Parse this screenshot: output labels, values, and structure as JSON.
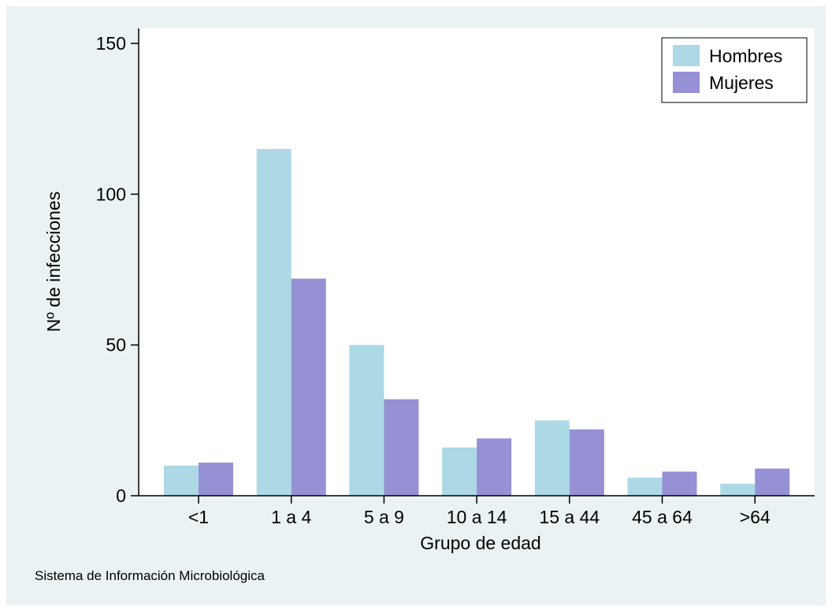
{
  "chart_data": {
    "type": "bar",
    "title": "",
    "xlabel": "Grupo de edad",
    "ylabel": "Nº de infecciones",
    "categories": [
      "<1",
      "1 a 4",
      "5 a 9",
      "10 a 14",
      "15 a 44",
      "45 a 64",
      ">64"
    ],
    "series": [
      {
        "name": "Hombres",
        "color": "#add8e6",
        "values": [
          10,
          115,
          50,
          16,
          25,
          6,
          4
        ]
      },
      {
        "name": "Mujeres",
        "color": "#9591d4",
        "values": [
          11,
          72,
          32,
          19,
          22,
          8,
          9
        ]
      }
    ],
    "ylim": [
      0,
      155
    ],
    "yticks": [
      0,
      50,
      100,
      150
    ],
    "grid": false,
    "legend_position": "top-right"
  },
  "footer": {
    "source": "Sistema de Información Microbiológica"
  },
  "style": {
    "background": "#eaf2f3",
    "plot_background": "#ffffff",
    "axis_color": "#000000"
  }
}
